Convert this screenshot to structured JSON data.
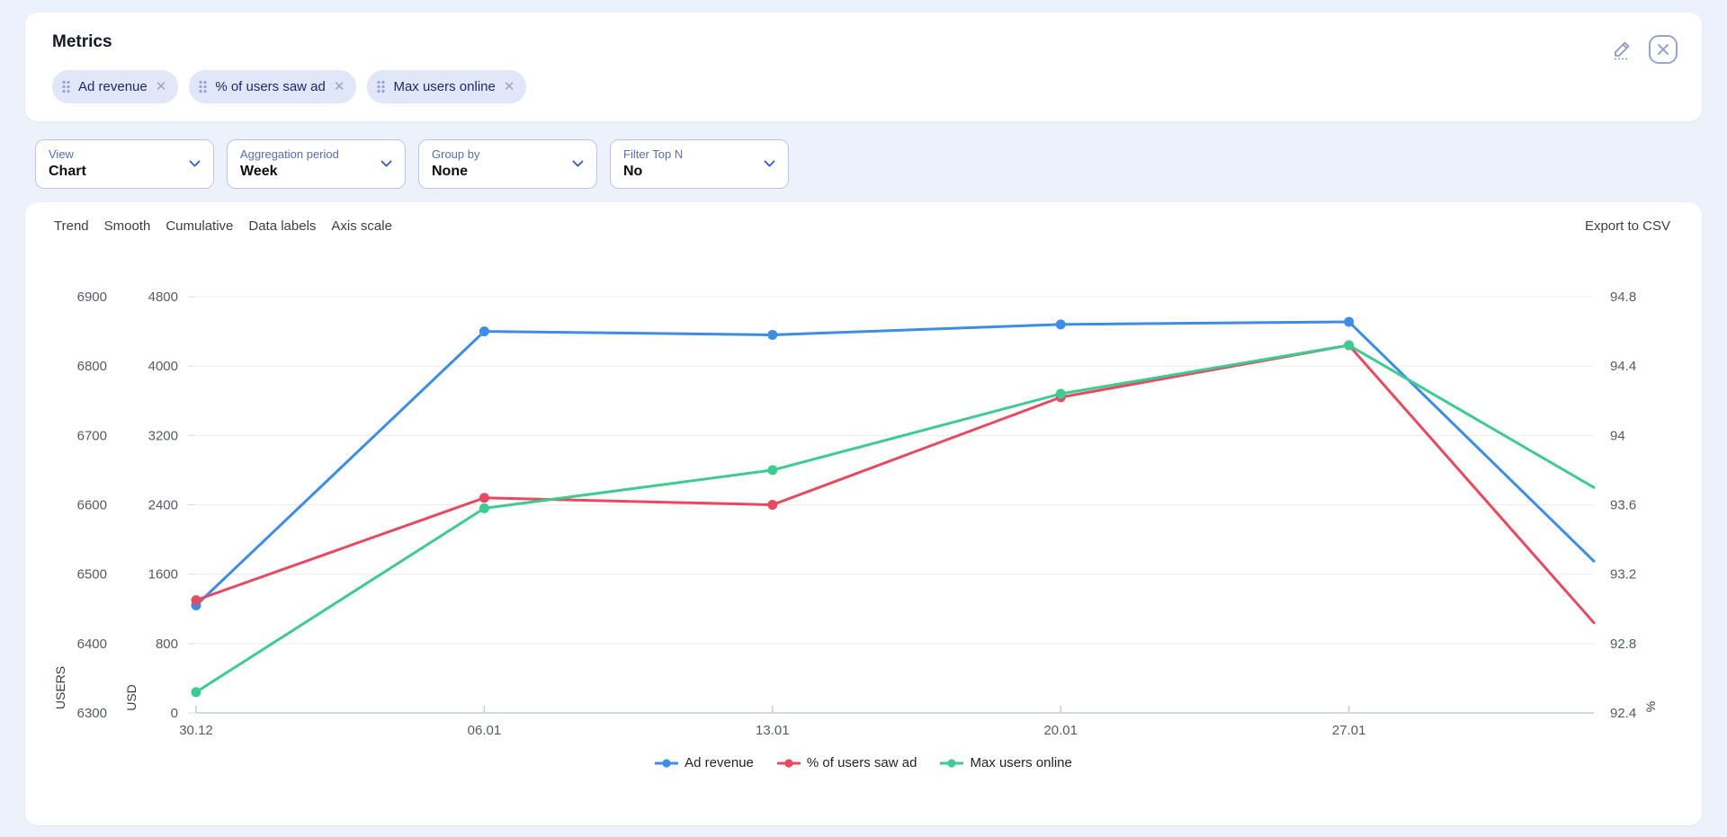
{
  "header": {
    "title": "Metrics",
    "chips": [
      {
        "label": "Ad revenue"
      },
      {
        "label": "% of users saw ad"
      },
      {
        "label": "Max users online"
      }
    ]
  },
  "filters": [
    {
      "label": "View",
      "value": "Chart"
    },
    {
      "label": "Aggregation period",
      "value": "Week"
    },
    {
      "label": "Group by",
      "value": "None"
    },
    {
      "label": "Filter Top N",
      "value": "No"
    }
  ],
  "chart_toolbar": {
    "options": [
      "Trend",
      "Smooth",
      "Cumulative",
      "Data labels",
      "Axis scale"
    ],
    "export_label": "Export to CSV"
  },
  "chart_data": {
    "type": "line",
    "x_tick_labels": [
      "30.12",
      "06.01",
      "13.01",
      "20.01",
      "27.01"
    ],
    "x_tick_positions": [
      0,
      1,
      2,
      3,
      4
    ],
    "x_positions": [
      0,
      1,
      2,
      3,
      4,
      4.85
    ],
    "x_span": 4.85,
    "grid": true,
    "legend_position": "bottom",
    "axes": {
      "users": {
        "title": "USERS",
        "side": "left-outer",
        "min": 6300,
        "max": 6900,
        "tick_labels": [
          "6300",
          "6400",
          "6500",
          "6600",
          "6700",
          "6800",
          "6900"
        ]
      },
      "usd": {
        "title": "USD",
        "side": "left-inner",
        "min": 0,
        "max": 4800,
        "tick_labels": [
          "0",
          "800",
          "1600",
          "2400",
          "3200",
          "4000",
          "4800"
        ]
      },
      "percent": {
        "title": "%",
        "side": "right",
        "min": 92.4,
        "max": 94.8,
        "tick_labels": [
          "92.4",
          "92.8",
          "93.2",
          "93.6",
          "94",
          "94.4",
          "94.8"
        ]
      }
    },
    "series": [
      {
        "name": "Ad revenue",
        "axis": "usd",
        "color": "#3d8de6",
        "values": [
          1240,
          4400,
          4360,
          4480,
          4510,
          1750
        ]
      },
      {
        "name": "% of users saw ad",
        "axis": "percent",
        "color": "#e9495f",
        "values": [
          93.05,
          93.64,
          93.6,
          94.22,
          94.52,
          92.92
        ]
      },
      {
        "name": "Max users online",
        "axis": "users",
        "color": "#3ecb92",
        "values": [
          6330,
          6595,
          6650,
          6760,
          6830,
          6625
        ]
      }
    ]
  }
}
